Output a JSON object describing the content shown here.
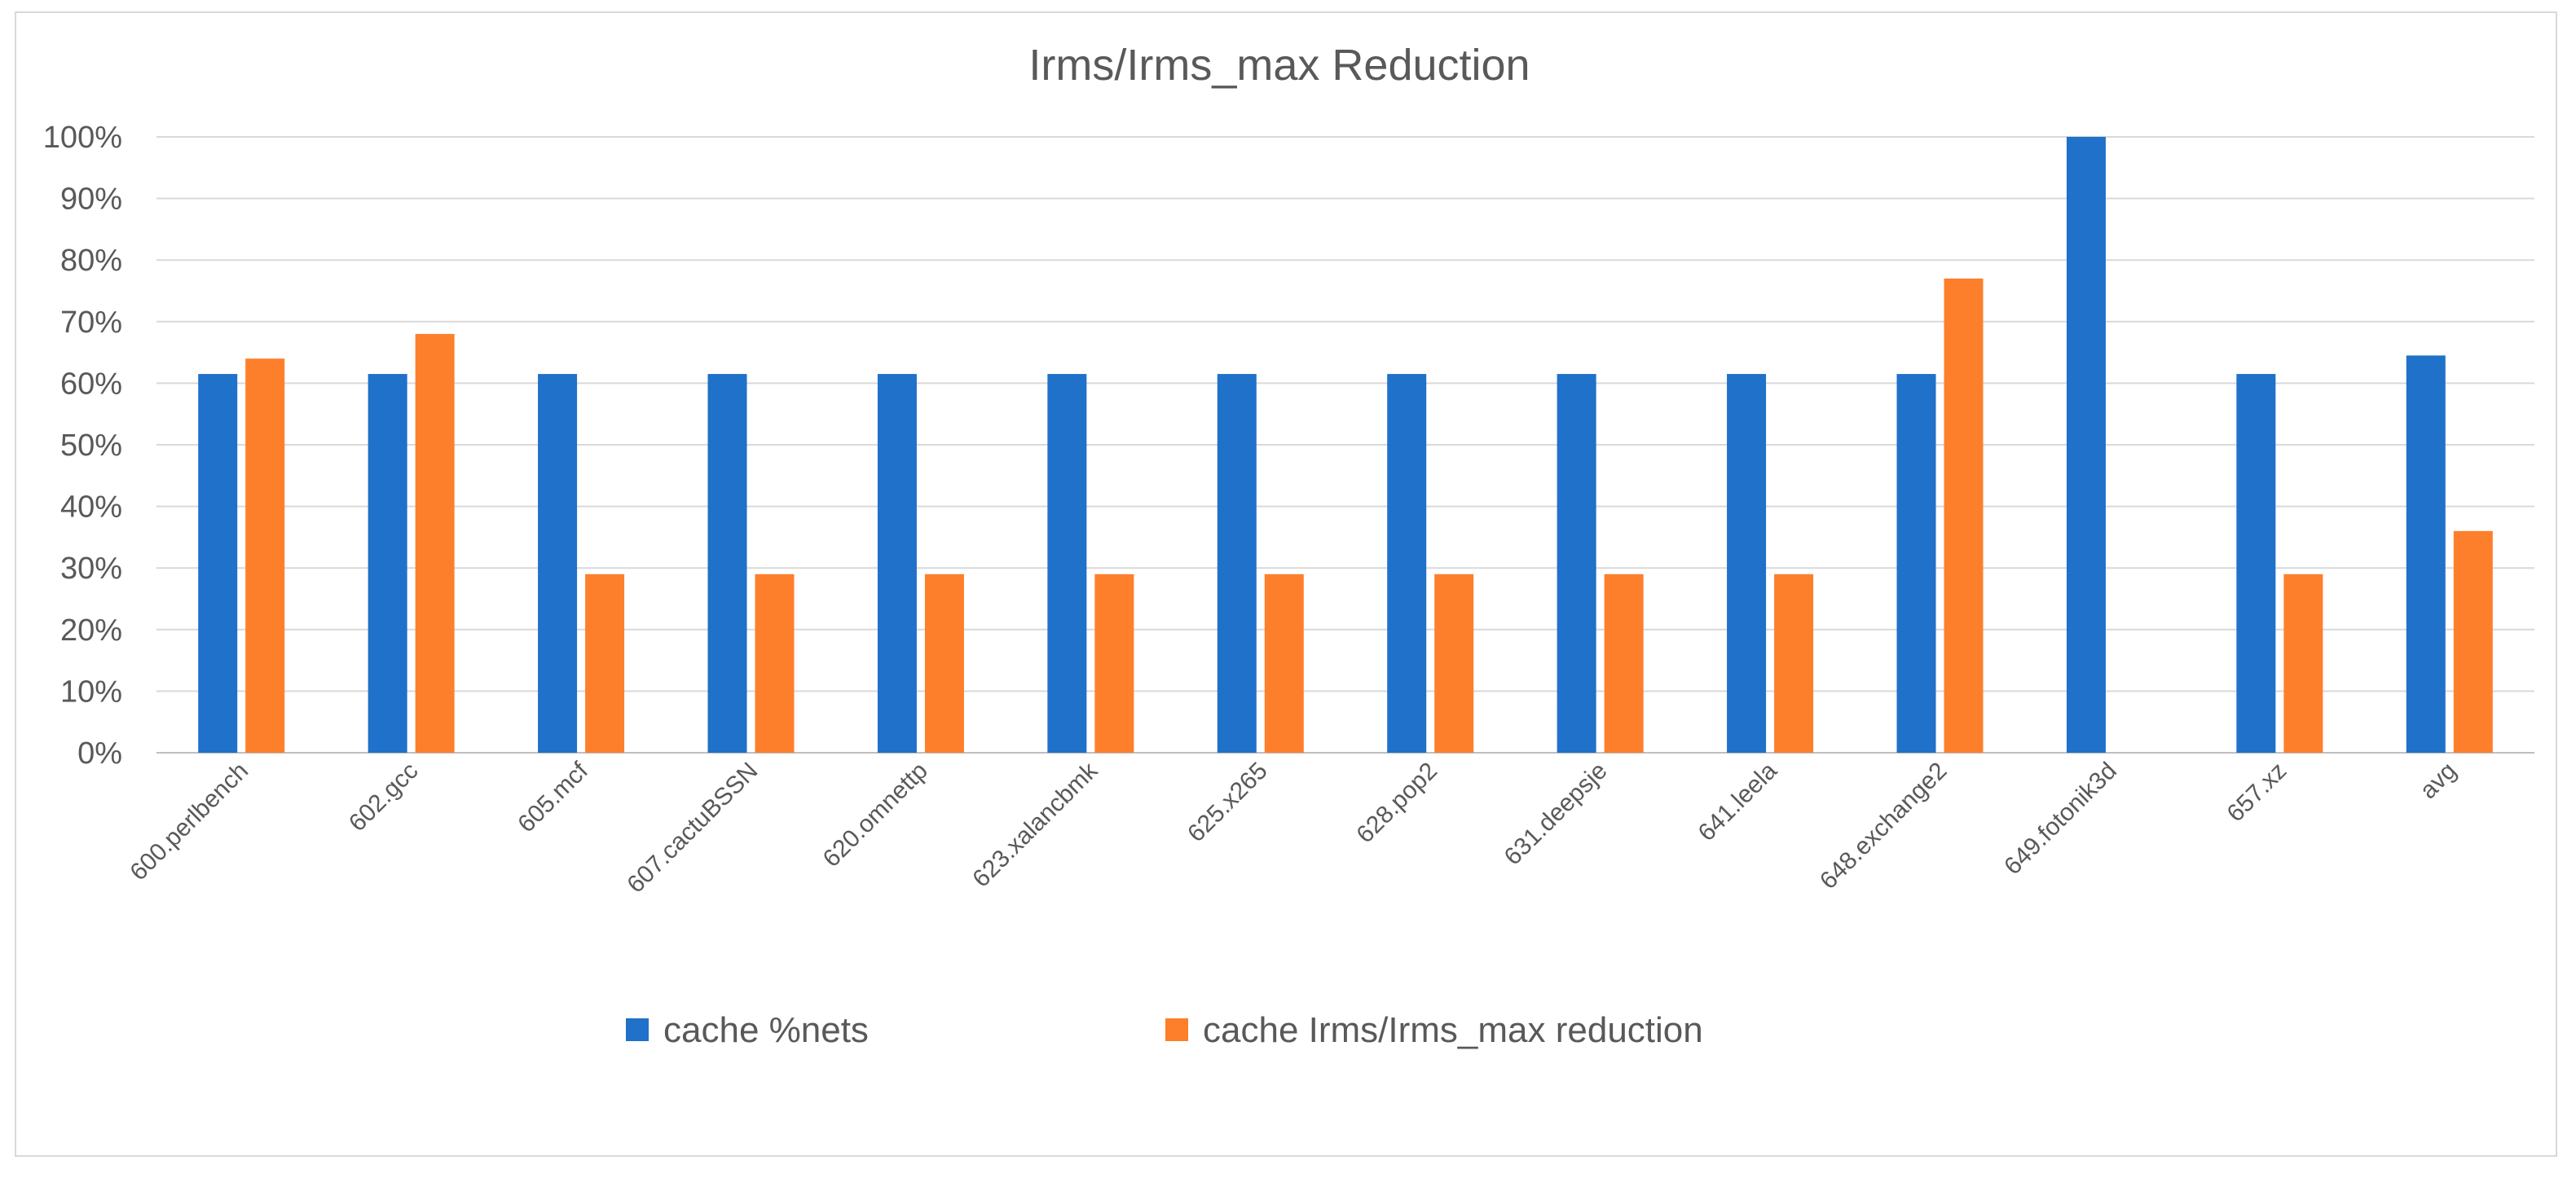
{
  "chart_data": {
    "type": "bar",
    "title": "Irms/Irms_max Reduction",
    "categories": [
      "600.perlbench",
      "602.gcc",
      "605.mcf",
      "607.cactuBSSN",
      "620.omnettp",
      "623.xalancbmk",
      "625.x265",
      "628.pop2",
      "631.deepsje",
      "641.leela",
      "648.exchange2",
      "649.fotonik3d",
      "657.xz",
      "avg"
    ],
    "series": [
      {
        "name": "cache %nets",
        "color": "#1f71c9",
        "values": [
          61.5,
          61.5,
          61.5,
          61.5,
          61.5,
          61.5,
          61.5,
          61.5,
          61.5,
          61.5,
          61.5,
          100,
          61.5,
          64.5
        ]
      },
      {
        "name": "cache Irms/Irms_max reduction",
        "color": "#fd7f2c",
        "values": [
          64,
          68,
          29,
          29,
          29,
          29,
          29,
          29,
          29,
          29,
          77,
          0,
          29,
          36
        ]
      }
    ],
    "ylim": [
      0,
      100
    ],
    "yticks": [
      "0%",
      "10%",
      "20%",
      "30%",
      "40%",
      "50%",
      "60%",
      "70%",
      "80%",
      "90%",
      "100%"
    ],
    "grid": true,
    "legend": "bottom"
  }
}
